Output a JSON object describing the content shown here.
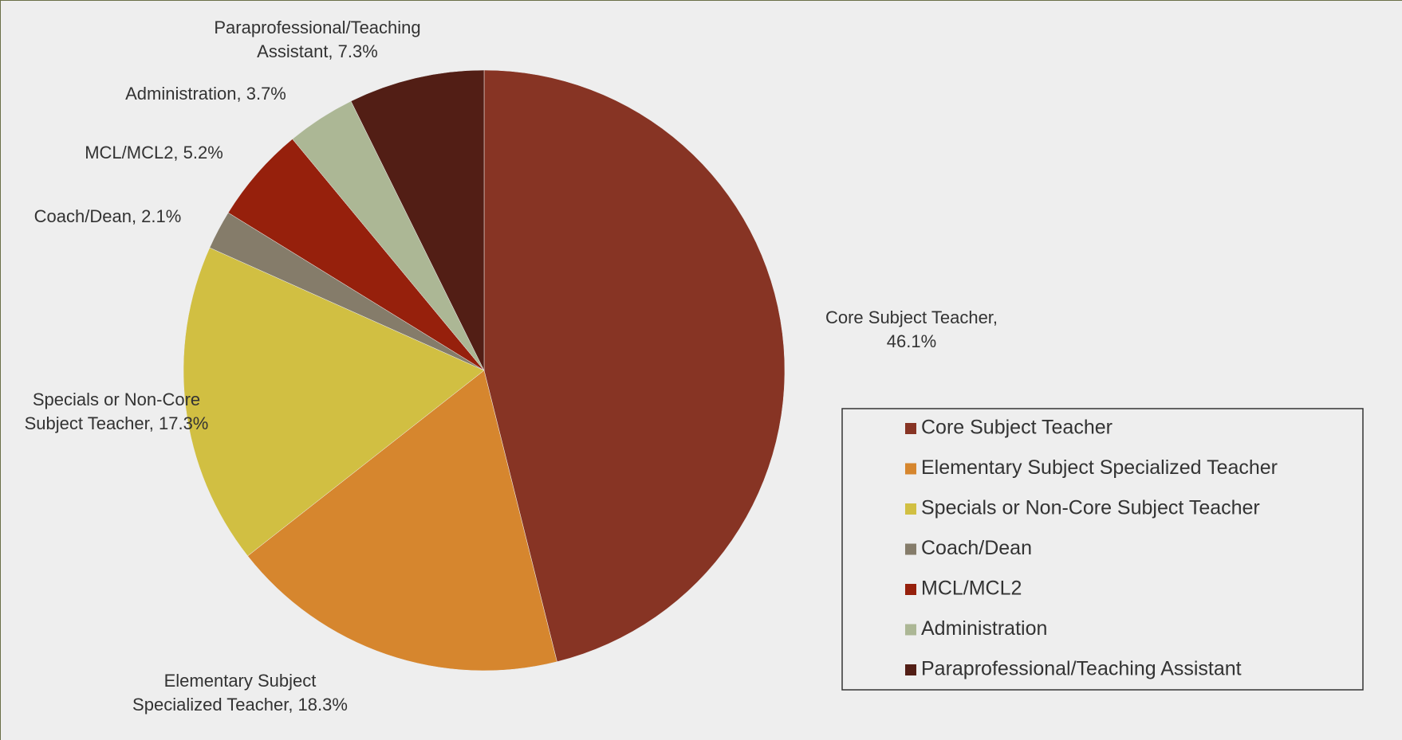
{
  "chart_data": {
    "type": "pie",
    "categories": [
      "Core Subject Teacher",
      "Elementary Subject Specialized Teacher",
      "Specials or Non-Core Subject Teacher",
      "Coach/Dean",
      "MCL/MCL2",
      "Administration",
      "Paraprofessional/Teaching Assistant"
    ],
    "values": [
      46.1,
      18.3,
      17.3,
      2.1,
      5.2,
      3.7,
      7.3
    ],
    "value_labels": [
      "Core Subject Teacher, 46.1%",
      "Elementary Subject Specialized Teacher, 18.3%",
      "Specials or Non-Core Subject Teacher, 17.3%",
      "Coach/Dean, 2.1%",
      "MCL/MCL2, 5.2%",
      "Administration, 3.7%",
      "Paraprofessional/Teaching Assistant, 7.3%"
    ],
    "colors": [
      "#873424",
      "#d6862e",
      "#d1bf42",
      "#857c6a",
      "#96200c",
      "#acb795",
      "#521e15"
    ],
    "legend": "right"
  }
}
